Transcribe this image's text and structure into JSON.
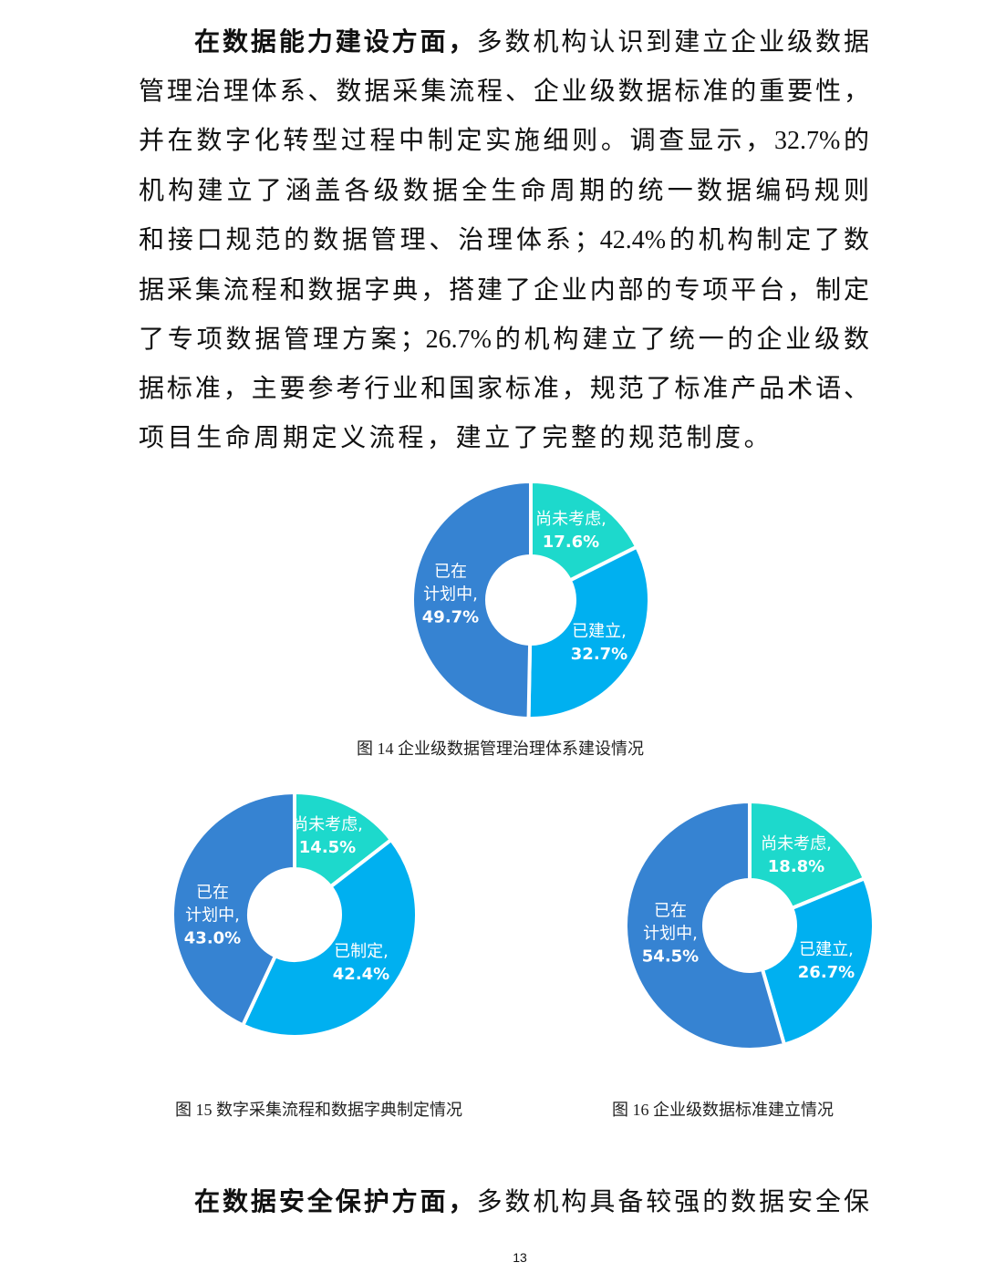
{
  "paragraph1": {
    "lead": "在数据能力建设方面，",
    "lines": [
      "多数机构认识到建立企业级数据",
      "管理治理体系、数据采集流程、企业级数据标准的重要性，",
      "并在数字化转型过程中制定实施细则。调查显示，32.7%的",
      "机构建立了涵盖各级数据全生命周期的统一数据编码规则",
      "和接口规范的数据管理、治理体系；42.4%的机构制定了数",
      "据采集流程和数据字典，搭建了企业内部的专项平台，制定",
      "了专项数据管理方案；26.7%的机构建立了统一的企业级数",
      "据标准，主要参考行业和国家标准，规范了标准产品术语、",
      "项目生命周期定义流程，建立了完整的规范制度。"
    ]
  },
  "colors": {
    "not_considered": "#1DD9CC",
    "established": "#00B0F0",
    "planning": "#3683D2"
  },
  "chart_data": [
    {
      "type": "pie",
      "donut": true,
      "title": "图 14 企业级数据管理治理体系建设情况",
      "slices": [
        {
          "name": "尚未考虑,",
          "value": 17.6,
          "label": "17.6%",
          "color": "#1DD9CC"
        },
        {
          "name": "已建立,",
          "value": 32.7,
          "label": "32.7%",
          "color": "#00B0F0"
        },
        {
          "name": "已在计划中,",
          "name_lines": [
            "已在",
            "计划中,"
          ],
          "value": 49.7,
          "label": "49.7%",
          "color": "#3683D2"
        }
      ]
    },
    {
      "type": "pie",
      "donut": true,
      "title": "图 15 数字采集流程和数据字典制定情况",
      "slices": [
        {
          "name": "尚未考虑,",
          "value": 14.5,
          "label": "14.5%",
          "color": "#1DD9CC"
        },
        {
          "name": "已制定,",
          "value": 42.4,
          "label": "42.4%",
          "color": "#00B0F0"
        },
        {
          "name": "已在计划中,",
          "name_lines": [
            "已在",
            "计划中,"
          ],
          "value": 43.0,
          "label": "43.0%",
          "color": "#3683D2"
        }
      ]
    },
    {
      "type": "pie",
      "donut": true,
      "title": "图 16 企业级数据标准建立情况",
      "slices": [
        {
          "name": "尚未考虑,",
          "value": 18.8,
          "label": "18.8%",
          "color": "#1DD9CC"
        },
        {
          "name": "已建立,",
          "value": 26.7,
          "label": "26.7%",
          "color": "#00B0F0"
        },
        {
          "name": "已在计划中,",
          "name_lines": [
            "已在",
            "计划中,"
          ],
          "value": 54.5,
          "label": "54.5%",
          "color": "#3683D2"
        }
      ]
    }
  ],
  "paragraph2": {
    "lead": "在数据安全保护方面，",
    "line": "多数机构具备较强的数据安全保"
  },
  "page_number": "13"
}
